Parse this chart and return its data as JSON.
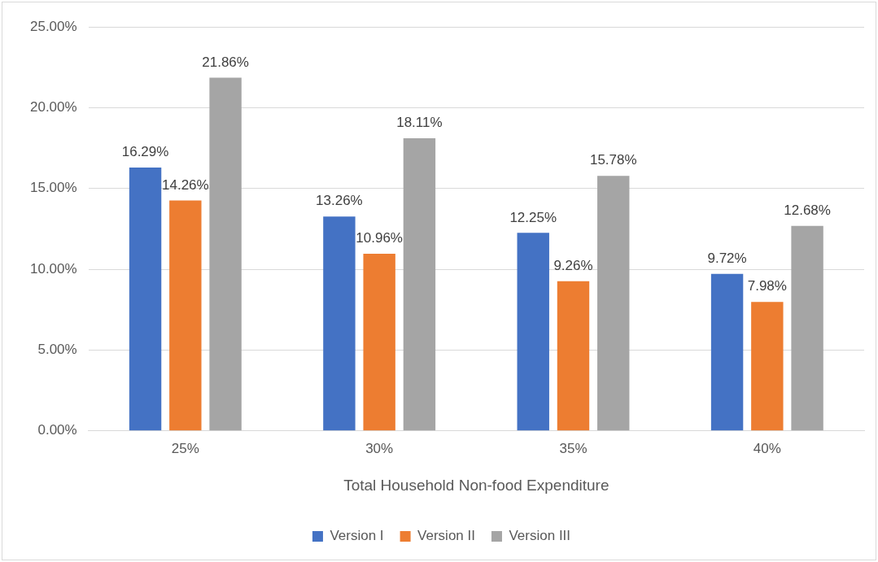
{
  "chart_data": {
    "type": "bar",
    "xlabel": "Total Household Non-food Expenditure",
    "categories": [
      "25%",
      "30%",
      "35%",
      "40%"
    ],
    "series": [
      {
        "name": "Version I",
        "color": "#4472c4",
        "values": [
          16.29,
          13.26,
          12.25,
          9.72
        ],
        "value_labels": [
          "16.29%",
          "13.26%",
          "12.25%",
          "9.72%"
        ]
      },
      {
        "name": "Version II",
        "color": "#ed7d31",
        "values": [
          14.26,
          10.96,
          9.26,
          7.98
        ],
        "value_labels": [
          "14.26%",
          "10.96%",
          "9.26%",
          "7.98%"
        ]
      },
      {
        "name": "Version III",
        "color": "#a5a5a5",
        "values": [
          21.86,
          18.11,
          15.78,
          12.68
        ],
        "value_labels": [
          "21.86%",
          "18.11%",
          "15.78%",
          "12.68%"
        ]
      }
    ],
    "ylim": [
      0,
      25
    ],
    "yticks": [
      {
        "value": 0,
        "label": "0.00%"
      },
      {
        "value": 5,
        "label": "5.00%"
      },
      {
        "value": 10,
        "label": "10.00%"
      },
      {
        "value": 15,
        "label": "15.00%"
      },
      {
        "value": 20,
        "label": "20.00%"
      },
      {
        "value": 25,
        "label": "25.00%"
      }
    ],
    "grid": "y",
    "legend": "bottom"
  }
}
